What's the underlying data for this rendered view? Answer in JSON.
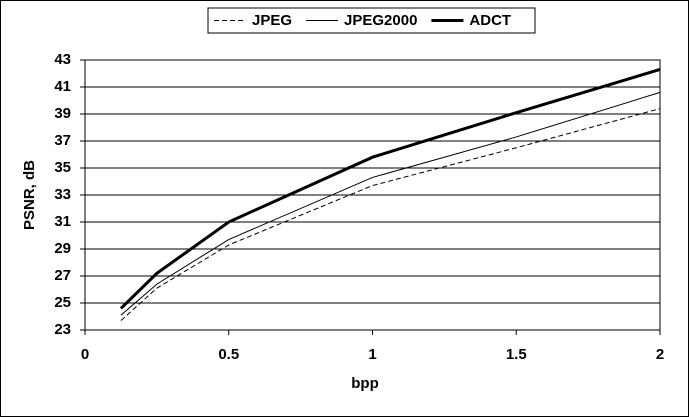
{
  "chart_data": {
    "type": "line",
    "x_label": "bpp",
    "y_label": "PSNR, dB",
    "x": [
      0.125,
      0.25,
      0.5,
      1,
      1.5,
      2
    ],
    "series": [
      {
        "name": "JPEG",
        "color": "#000000",
        "dash": "dashed",
        "width": 1,
        "values": [
          23.7,
          26.1,
          29.3,
          33.7,
          36.5,
          39.4
        ]
      },
      {
        "name": "JPEG2000",
        "color": "#000000",
        "dash": "solid",
        "width": 1,
        "values": [
          24.1,
          26.4,
          29.7,
          34.3,
          37.3,
          40.6
        ]
      },
      {
        "name": "ADCT",
        "color": "#000000",
        "dash": "solid",
        "width": 3,
        "values": [
          24.6,
          27.2,
          31.0,
          35.8,
          39.1,
          42.3
        ]
      }
    ],
    "xlim": [
      0,
      2
    ],
    "xticks": [
      0,
      0.5,
      1,
      1.5,
      2
    ],
    "ylim": [
      23,
      43
    ],
    "yticks": [
      23,
      25,
      27,
      29,
      31,
      33,
      35,
      37,
      39,
      41,
      43
    ],
    "grid": true,
    "legend": "top"
  }
}
